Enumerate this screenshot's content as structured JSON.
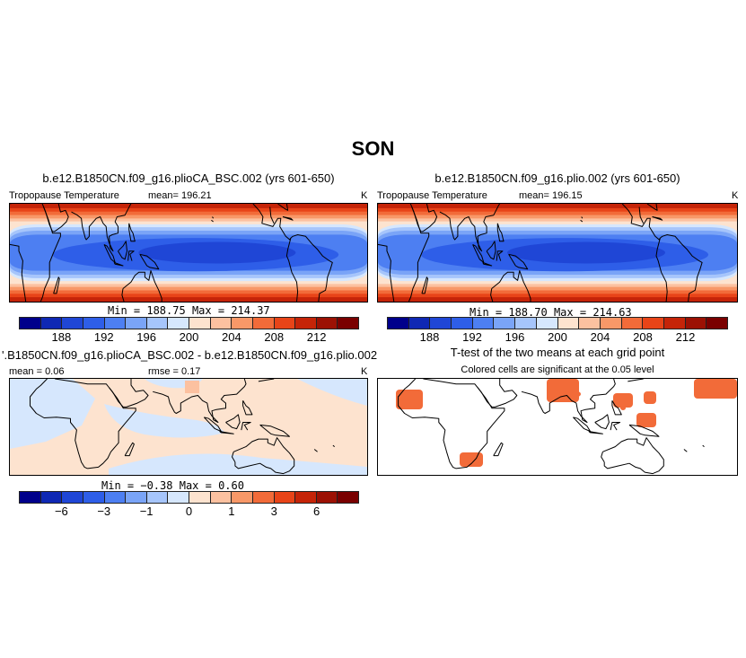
{
  "season": "SON",
  "panel_ctrl": {
    "case": "b.e12.B1850CN.f09_g16.plioCA_BSC.002 (yrs 601-650)",
    "variable": "Tropopause Temperature",
    "mean_label": "mean=",
    "mean": "196.21",
    "units": "K",
    "min_label": "Min =",
    "min": "188.75",
    "max_label": "Max =",
    "max": "214.37"
  },
  "panel_exp": {
    "case": "b.e12.B1850CN.f09_g16.plio.002 (yrs 601-650)",
    "variable": "Tropopause Temperature",
    "mean_label": "mean=",
    "mean": "196.15",
    "units": "K",
    "min_label": "Min =",
    "min": "188.70",
    "max_label": "Max =",
    "max": "214.63"
  },
  "panel_diff": {
    "case": "'.B1850CN.f09_g16.plioCA_BSC.002 - b.e12.B1850CN.f09_g16.plio.002",
    "mean_label": "mean =",
    "mean": "0.06",
    "rmse_label": "rmse =",
    "rmse": "0.17",
    "units": "K",
    "min_label": "Min =",
    "min": "−0.38",
    "max_label": "Max =",
    "max": "0.60"
  },
  "panel_ttest": {
    "title": "T-test of the two means at each grid point",
    "subtitle": "Colored cells are significant at the 0.05 level"
  },
  "colors": {
    "abs_palette": [
      "#00008b",
      "#0f28b4",
      "#1f46d6",
      "#2e5ee8",
      "#4d7ff2",
      "#7aa4f7",
      "#a6c5fb",
      "#d6e7fd",
      "#fde3cf",
      "#fcc1a0",
      "#f89868",
      "#f26b39",
      "#e84418",
      "#c52408",
      "#9c1104",
      "#7a0000"
    ],
    "diff_palette": [
      "#00008b",
      "#0f28b4",
      "#1f46d6",
      "#2e5ee8",
      "#4d7ff2",
      "#7aa4f7",
      "#a6c5fb",
      "#d6e7fd",
      "#fde3cf",
      "#fcc1a0",
      "#f89868",
      "#f26b39",
      "#e84418",
      "#c52408",
      "#9c1104",
      "#7a0000"
    ],
    "significance": "#f26b39"
  },
  "chart_data": [
    {
      "type": "heatmap",
      "name": "control",
      "title": "b.e12.B1850CN.f09_g16.plioCA_BSC.002 (yrs 601-650)",
      "colorbar_levels": [
        186,
        188,
        190,
        192,
        194,
        196,
        198,
        200,
        202,
        204,
        206,
        208,
        210,
        212,
        214
      ],
      "colorbar_tick_labels": [
        "188",
        "192",
        "196",
        "200",
        "204",
        "208",
        "212"
      ],
      "stats": {
        "mean": 196.21,
        "min": 188.75,
        "max": 214.37
      }
    },
    {
      "type": "heatmap",
      "name": "experiment",
      "title": "b.e12.B1850CN.f09_g16.plio.002 (yrs 601-650)",
      "colorbar_levels": [
        186,
        188,
        190,
        192,
        194,
        196,
        198,
        200,
        202,
        204,
        206,
        208,
        210,
        212,
        214
      ],
      "colorbar_tick_labels": [
        "188",
        "192",
        "196",
        "200",
        "204",
        "208",
        "212"
      ],
      "stats": {
        "mean": 196.15,
        "min": 188.7,
        "max": 214.63
      }
    },
    {
      "type": "heatmap",
      "name": "difference",
      "colorbar_levels": [
        -8,
        -6,
        -4,
        -3,
        -2,
        -1,
        -0.5,
        0,
        0.5,
        1,
        2,
        3,
        4,
        6,
        8
      ],
      "colorbar_tick_labels": [
        "−6",
        "−3",
        "−1",
        "0",
        "1",
        "3",
        "6"
      ],
      "stats": {
        "mean": 0.06,
        "rmse": 0.17,
        "min": -0.38,
        "max": 0.6
      }
    },
    {
      "type": "heatmap",
      "name": "t-test",
      "title": "T-test of the two means at each grid point"
    }
  ]
}
